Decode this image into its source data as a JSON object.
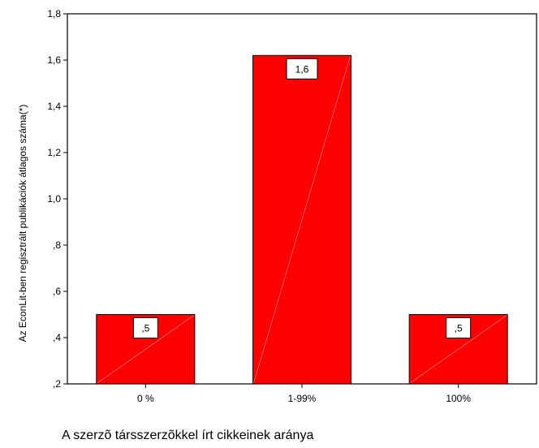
{
  "chart_data": {
    "type": "bar",
    "categories": [
      "0 %",
      "1-99%",
      "100%"
    ],
    "values": [
      0.5,
      1.62,
      0.5
    ],
    "data_labels": [
      ",5",
      "1,6",
      ",5"
    ],
    "xlabel": "A szerzõ társszerzõkkel írt cikkeinek aránya",
    "ylabel": "Az EconLit-ben regisztrált publikációk átlagos száma(*)",
    "ylim": [
      0.2,
      1.8
    ],
    "yticks": [
      0.2,
      0.4,
      0.6,
      0.8,
      1.0,
      1.2,
      1.4,
      1.6,
      1.8
    ],
    "ytick_labels": [
      ",2",
      ",4",
      ",6",
      ",8",
      "1,0",
      "1,2",
      "1,4",
      "1,6",
      "1,8"
    ],
    "bar_color": "#ff0000",
    "grid": false,
    "legend": "none"
  }
}
